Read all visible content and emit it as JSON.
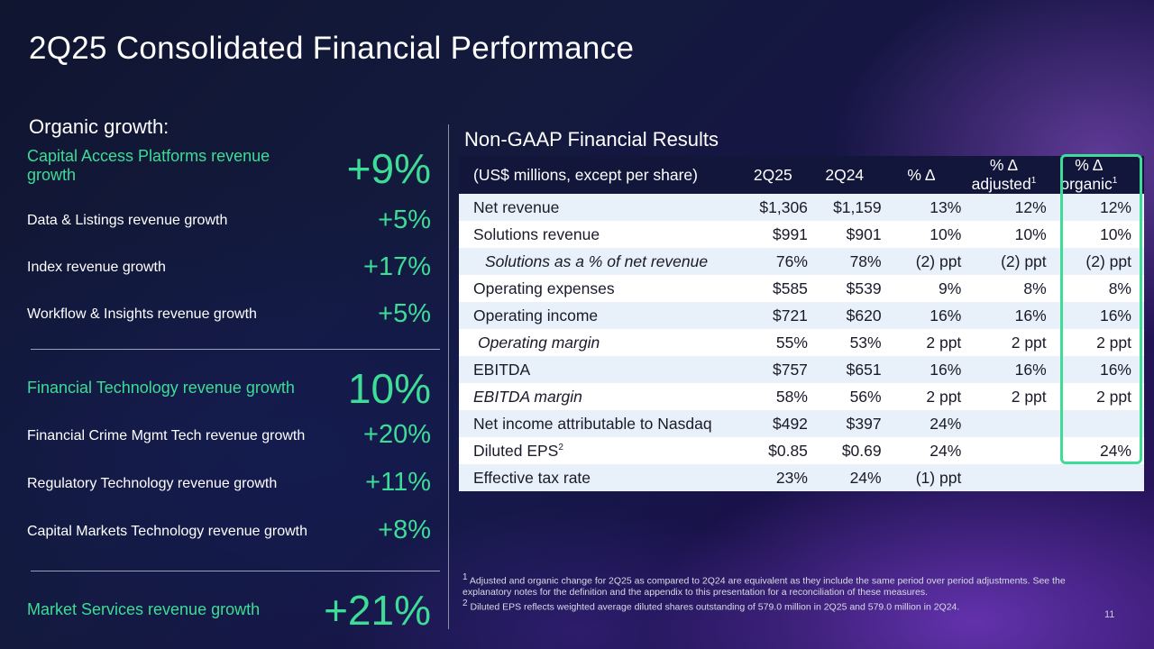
{
  "title": "2Q25 Consolidated Financial Performance",
  "organic": {
    "heading": "Organic growth:",
    "rows": [
      {
        "label": "Capital Access Platforms revenue growth",
        "value": "+9%"
      },
      {
        "label": "Data & Listings revenue growth",
        "value": "+5%"
      },
      {
        "label": "Index revenue growth",
        "value": "+17%"
      },
      {
        "label": "Workflow & Insights revenue growth",
        "value": "+5%"
      },
      {
        "label": "Financial Technology revenue growth",
        "value": "10%"
      },
      {
        "label": "Financial Crime Mgmt Tech revenue growth",
        "value": "+20%"
      },
      {
        "label": "Regulatory Technology revenue growth",
        "value": "+11%"
      },
      {
        "label": "Capital Markets Technology revenue growth",
        "value": "+8%"
      },
      {
        "label": "Market Services revenue growth",
        "value": "+21%"
      }
    ]
  },
  "nongaap": {
    "heading": "Non-GAAP Financial Results",
    "header": {
      "col0": "(US$ millions, except per share)",
      "col1": "2Q25",
      "col2": "2Q24",
      "col3": "% Δ",
      "col4_line1": "% Δ",
      "col4_line2": "adjusted",
      "col4_sup": "1",
      "col5_line1": "% Δ",
      "col5_line2": "organic",
      "col5_sup": "1"
    },
    "rows": [
      [
        "Net revenue",
        "$1,306",
        "$1,159",
        "13%",
        "12%",
        "12%"
      ],
      [
        "Solutions revenue",
        "$991",
        "$901",
        "10%",
        "10%",
        "10%"
      ],
      [
        "Solutions as a % of net revenue",
        "76%",
        "78%",
        "(2) ppt",
        "(2) ppt",
        "(2) ppt"
      ],
      [
        "Operating expenses",
        "$585",
        "$539",
        "9%",
        "8%",
        "8%"
      ],
      [
        "Operating income",
        "$721",
        "$620",
        "16%",
        "16%",
        "16%"
      ],
      [
        "Operating margin",
        "55%",
        "53%",
        "2 ppt",
        "2 ppt",
        "2 ppt"
      ],
      [
        "EBITDA",
        "$757",
        "$651",
        "16%",
        "16%",
        "16%"
      ],
      [
        "EBITDA margin",
        "58%",
        "56%",
        "2 ppt",
        "2 ppt",
        "2 ppt"
      ],
      [
        "Net income attributable to Nasdaq",
        "$492",
        "$397",
        "24%",
        "",
        ""
      ],
      [
        "Diluted EPS",
        "$0.85",
        "$0.69",
        "24%",
        "",
        "24%"
      ],
      [
        "Effective tax rate",
        "23%",
        "24%",
        "(1) ppt",
        "",
        ""
      ]
    ],
    "eps_sup": "2"
  },
  "footnotes": {
    "n1_sup": "1",
    "n1": "Adjusted and organic change for 2Q25 as compared to 2Q24 are equivalent as they include the same period over period adjustments. See the explanatory notes for the definition and the appendix to this presentation for a reconciliation of these measures.",
    "n2_sup": "2",
    "n2": "Diluted EPS reflects weighted average diluted shares outstanding of 579.0 million in 2Q25 and 579.0 million in 2Q24."
  },
  "page_number": "11",
  "colors": {
    "accent": "#3ddc97",
    "header_bg": "#11163a",
    "stripe": "#e8f0fa"
  }
}
